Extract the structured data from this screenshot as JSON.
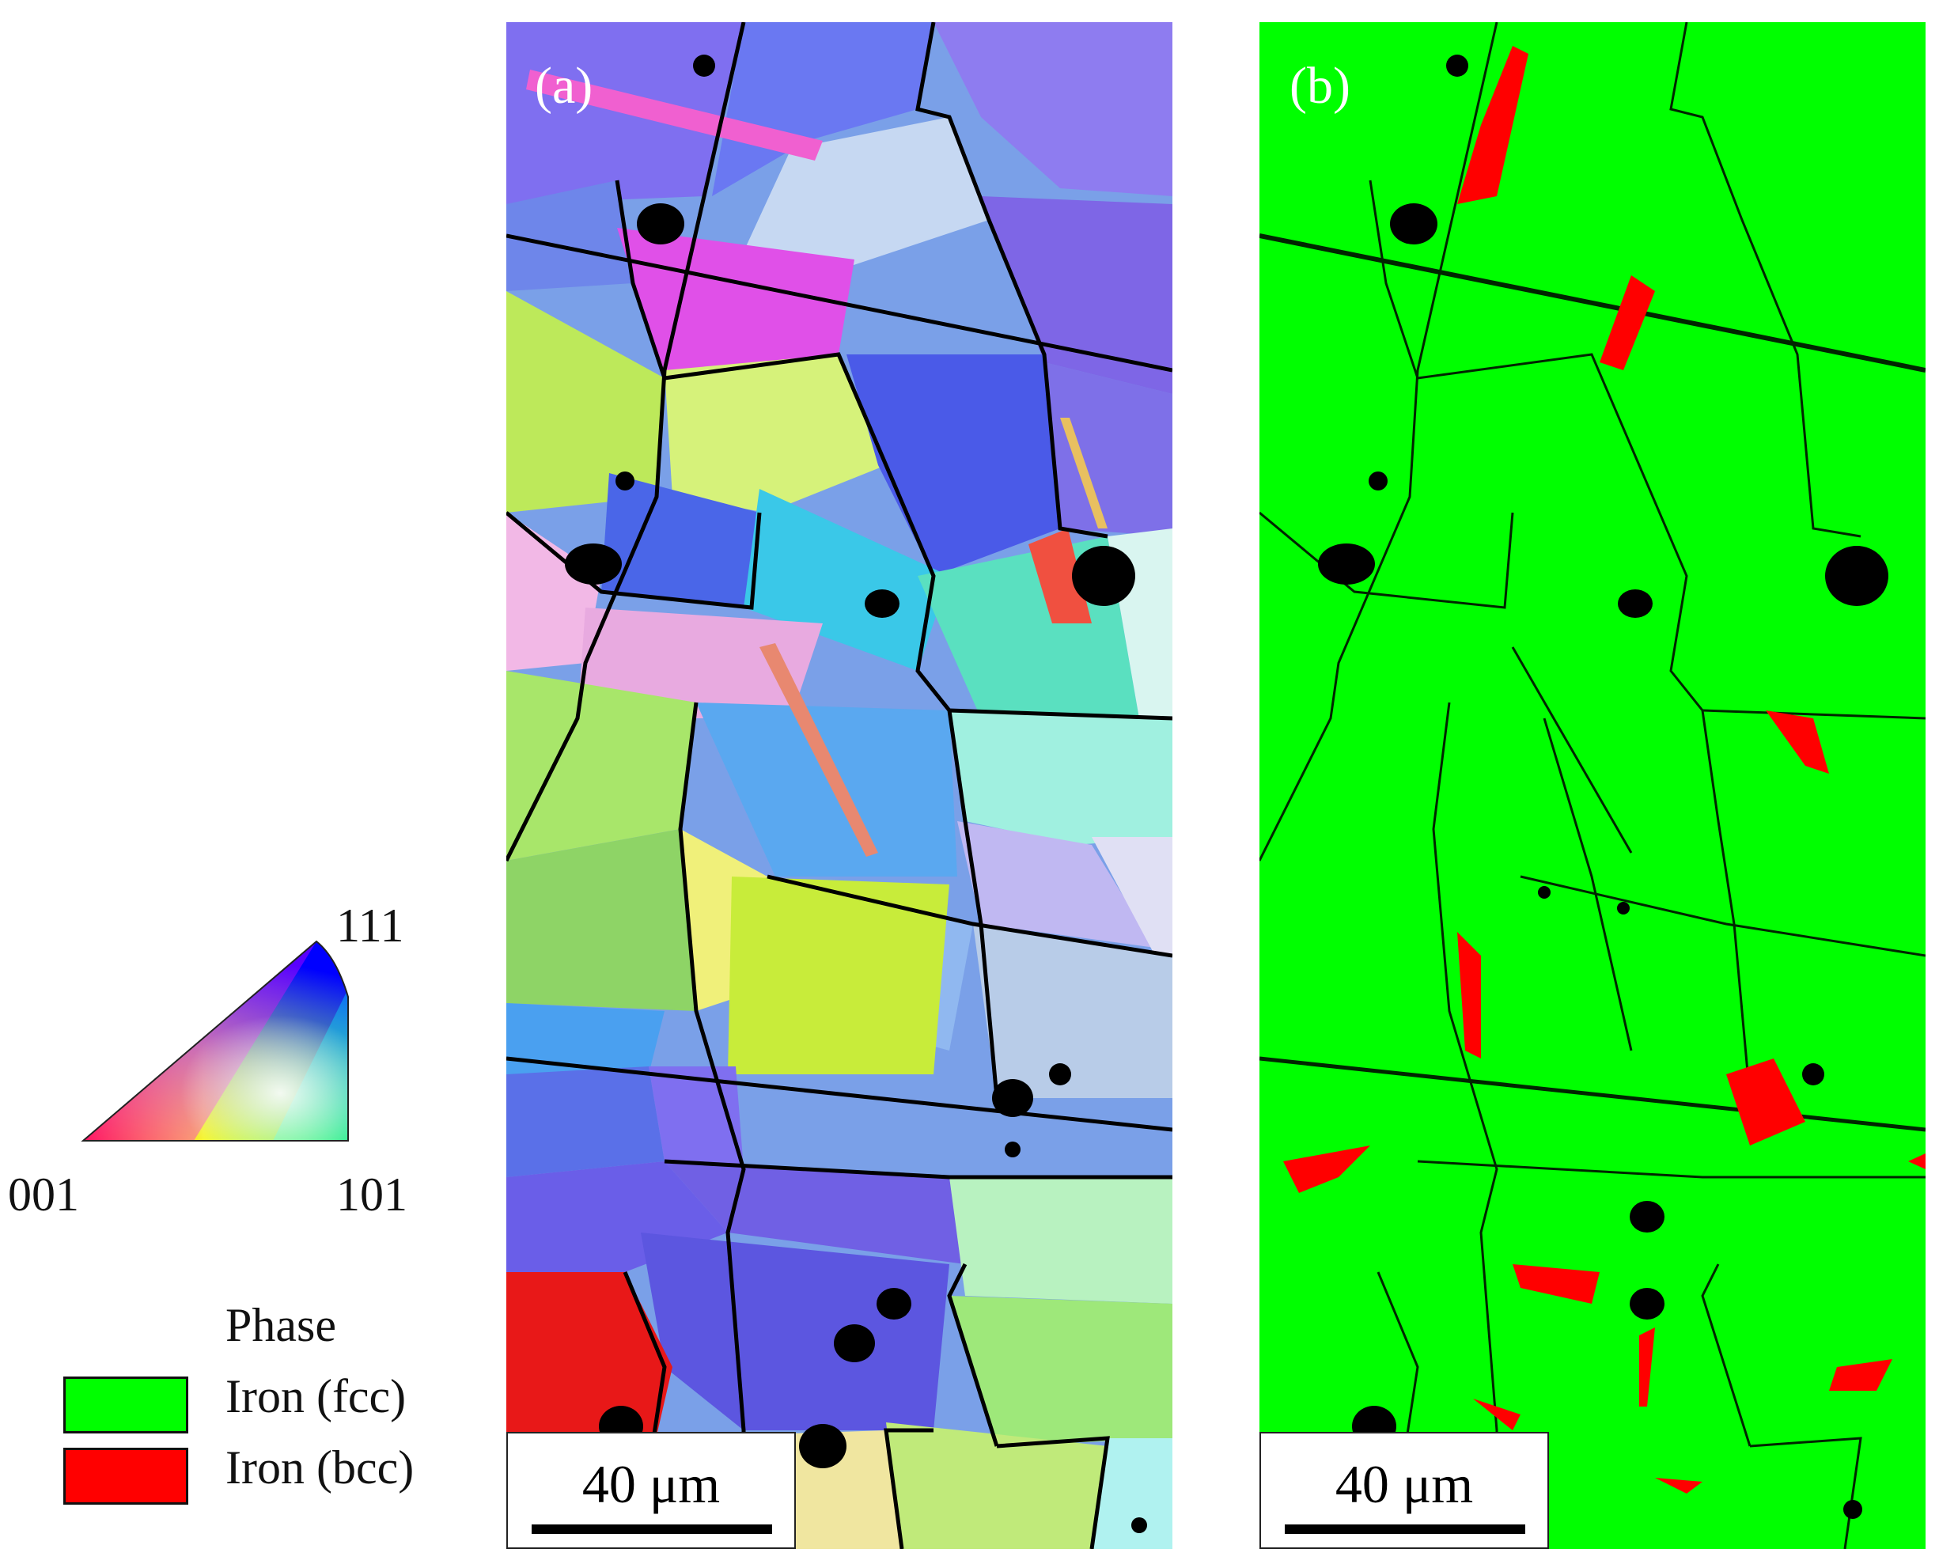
{
  "legend": {
    "ipf_vertices": {
      "v111": "111",
      "v001": "001",
      "v101": "101"
    },
    "phase_title": "Phase",
    "phases": [
      {
        "label": "Iron (fcc)",
        "color": "#00ff00"
      },
      {
        "label": "Iron (bcc)",
        "color": "#ff0000"
      }
    ]
  },
  "panel_a": {
    "letter": "(a)",
    "scale_label": "40 μm",
    "type": "EBSD inverse pole figure orientation map"
  },
  "panel_b": {
    "letter": "(b)",
    "scale_label": "40 μm",
    "type": "EBSD phase map",
    "matrix_color": "#00ff00",
    "minor_phase_color": "#ff0000"
  }
}
